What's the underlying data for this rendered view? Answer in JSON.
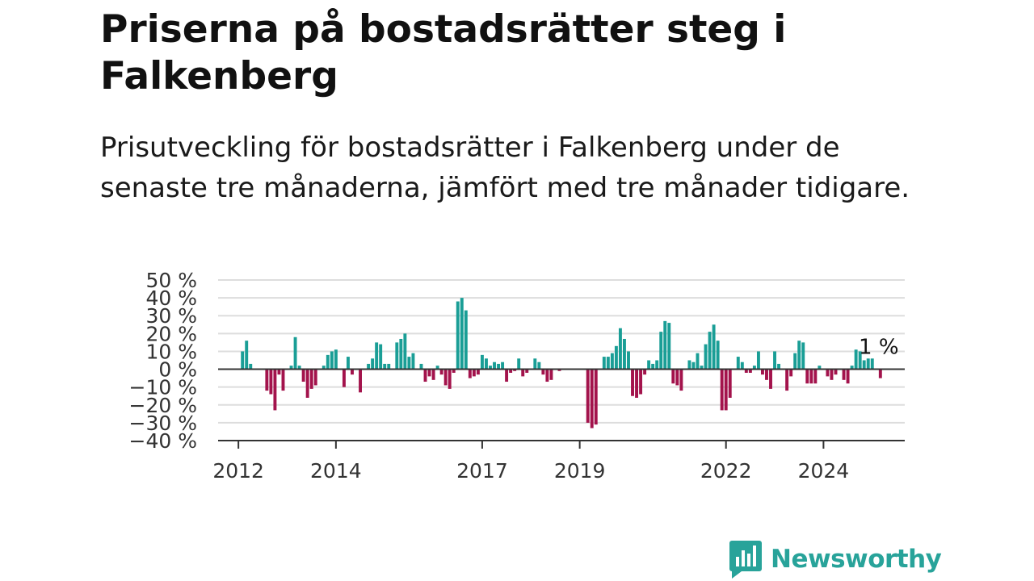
{
  "title": "Priserna på bostadsrätter steg i Falkenberg",
  "subtitle": "Prisutveckling för bostadsrätter i Falkenberg under de senaste tre månaderna, jämfört med tre månader tidigare.",
  "brand": {
    "name": "Newsworthy",
    "icon": "newsworthy-logo-icon"
  },
  "colors": {
    "positive": "#1a9e96",
    "negative": "#a3134c",
    "grid": "#dddddd",
    "axis": "#333333",
    "brand": "#28a39a"
  },
  "chart_data": {
    "type": "bar",
    "x_unit": "month",
    "x_start": "2012-01",
    "xlim": [
      "2011-08",
      "2025-09"
    ],
    "ylim": [
      -40,
      50
    ],
    "grid": true,
    "y_ticks": [
      {
        "value": 50,
        "label": "50 %"
      },
      {
        "value": 40,
        "label": "40 %"
      },
      {
        "value": 30,
        "label": "30 %"
      },
      {
        "value": 20,
        "label": "20 %"
      },
      {
        "value": 10,
        "label": "10 %"
      },
      {
        "value": 0,
        "label": "0 %"
      },
      {
        "value": -10,
        "label": "−10 %"
      },
      {
        "value": -20,
        "label": "−20 %"
      },
      {
        "value": -30,
        "label": "−30 %"
      },
      {
        "value": -40,
        "label": "−40 %"
      }
    ],
    "x_ticks": [
      {
        "date": "2012-01",
        "label": "2012"
      },
      {
        "date": "2014-01",
        "label": "2014"
      },
      {
        "date": "2017-01",
        "label": "2017"
      },
      {
        "date": "2019-01",
        "label": "2019"
      },
      {
        "date": "2022-01",
        "label": "2022"
      },
      {
        "date": "2024-01",
        "label": "2024"
      }
    ],
    "annotation": {
      "date": "2025-02",
      "value": 1,
      "label": "1 %"
    },
    "values": [
      null,
      10,
      16,
      3,
      null,
      null,
      null,
      -12,
      -14,
      -23,
      -3,
      -12,
      null,
      2,
      18,
      2,
      -7,
      -16,
      -11,
      -9,
      null,
      2,
      8,
      10,
      11,
      null,
      -10,
      7,
      -3,
      null,
      -13,
      null,
      3,
      6,
      15,
      14,
      3,
      3,
      null,
      15,
      17,
      20,
      7,
      9,
      null,
      3,
      -7,
      -4,
      -6,
      2,
      -3,
      -9,
      -11,
      -2,
      38,
      40,
      33,
      -5,
      -4,
      -3,
      8,
      6,
      2,
      4,
      3,
      4,
      -7,
      -2,
      -1,
      6,
      -4,
      -2,
      null,
      6,
      4,
      -3,
      -7,
      -6,
      null,
      -1,
      null,
      null,
      null,
      null,
      null,
      null,
      -30,
      -33,
      -31,
      null,
      7,
      7,
      9,
      13,
      23,
      17,
      10,
      -15,
      -16,
      -14,
      -3,
      5,
      3,
      5,
      21,
      27,
      26,
      -8,
      -9,
      -12,
      null,
      5,
      4,
      9,
      2,
      14,
      21,
      25,
      16,
      -23,
      -23,
      -16,
      null,
      7,
      4,
      -2,
      -2,
      2,
      10,
      -3,
      -6,
      -11,
      10,
      3,
      null,
      -12,
      -4,
      9,
      16,
      15,
      -8,
      -8,
      -8,
      2,
      null,
      -4,
      -6,
      -3,
      null,
      -6,
      -8,
      2,
      11,
      10,
      5,
      6,
      6,
      null,
      -5
    ]
  }
}
